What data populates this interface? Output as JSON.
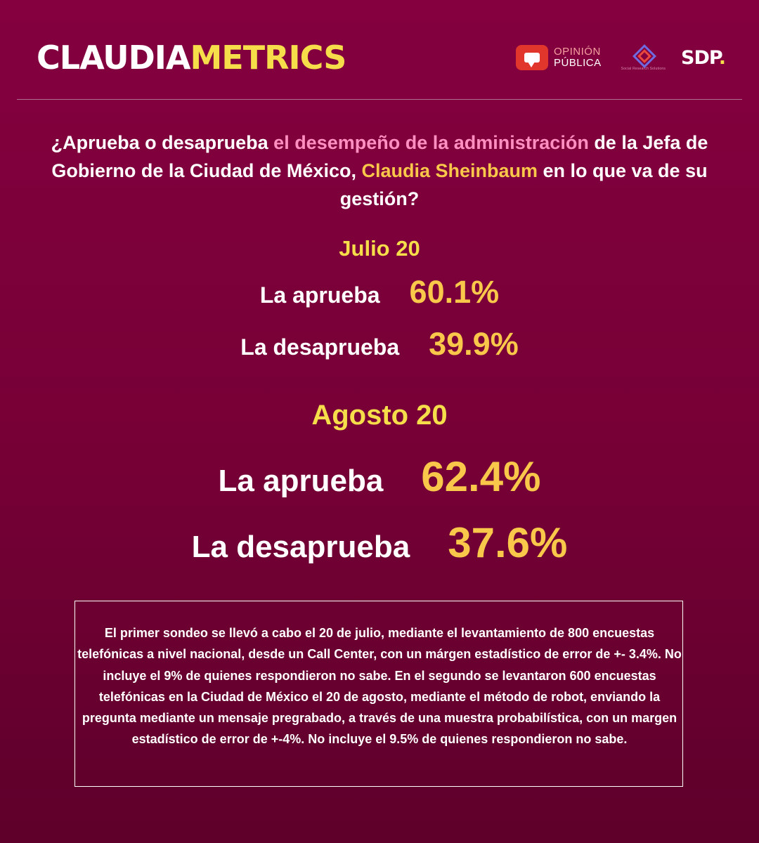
{
  "header": {
    "brand_part1": "CLAUDIA",
    "brand_part2": "METRICS",
    "logo_opinion_line1": "OPINIÓN",
    "logo_opinion_line2": "PÚBLICA",
    "logo_srs_text": "Social Research Solutions",
    "logo_sdp": "SDP",
    "logo_sdp_dot": "."
  },
  "question": {
    "part1": "¿Aprueba o desaprueba ",
    "highlight1": "el desempeño de la administración",
    "part2": " de la Jefa de Gobierno de la Ciudad de México, ",
    "highlight2": "Claudia Sheinbaum",
    "part3": " en lo que va de su gestión?"
  },
  "julio": {
    "title": "Julio 20",
    "approve_label": "La aprueba",
    "approve_value": "60.1%",
    "disapprove_label": "La desaprueba",
    "disapprove_value": "39.9%"
  },
  "agosto": {
    "title": "Agosto 20",
    "approve_label": "La aprueba",
    "approve_value": "62.4%",
    "disapprove_label": "La desaprueba",
    "disapprove_value": "37.6%"
  },
  "methodology": "El primer sondeo se llevó a cabo el 20 de julio, mediante el levantamiento de 800 encuestas telefónicas a nivel nacional, desde un Call Center, con un márgen estadístico de error de +- 3.4%. No incluye el 9% de quienes respondieron no sabe. En el segundo se levantaron 600 encuestas telefónicas en la Ciudad de México el 20 de agosto, mediante el método de robot, enviando la pregunta mediante un mensaje pregrabado, a través de una muestra probabilística, con un margen estadístico de error de +-4%. No incluye el 9.5% de quienes respondieron no sabe.",
  "colors": {
    "background": "#7d003b",
    "accent_yellow": "#f9c84a",
    "accent_pink": "#ff8fc0"
  }
}
